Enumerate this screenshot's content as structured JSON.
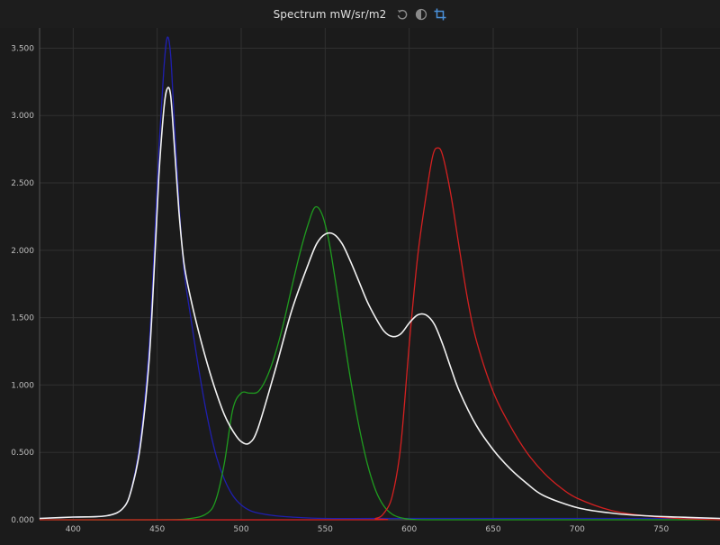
{
  "header": {
    "title": "Spectrum mW/sr/m2",
    "icons": [
      "reset-icon",
      "contrast-icon",
      "crop-icon"
    ],
    "accent": "#4a90d9"
  },
  "chart_data": {
    "type": "line",
    "title": "Spectrum mW/sr/m2",
    "xlabel": "",
    "ylabel": "",
    "xlim": [
      380,
      785
    ],
    "ylim": [
      0,
      3.65
    ],
    "x_ticks": [
      400,
      450,
      500,
      550,
      600,
      650,
      700,
      750
    ],
    "y_ticks": [
      0,
      0.5,
      1.0,
      1.5,
      2.0,
      2.5,
      3.0,
      3.5
    ],
    "y_tick_labels": [
      "0.000",
      "0.500",
      "1.000",
      "1.500",
      "2.000",
      "2.500",
      "3.000",
      "3.500"
    ],
    "grid": true,
    "series": [
      {
        "color": "#1f1fae",
        "x": [
          380,
          400,
          420,
          430,
          435,
          440,
          445,
          448,
          451,
          454,
          456,
          458,
          460,
          463,
          466,
          470,
          475,
          480,
          485,
          490,
          495,
          500,
          505,
          510,
          520,
          530,
          550,
          600,
          650,
          700,
          750,
          785
        ],
        "y": [
          0.01,
          0.02,
          0.03,
          0.09,
          0.25,
          0.6,
          1.25,
          1.95,
          2.75,
          3.35,
          3.58,
          3.45,
          3.0,
          2.35,
          1.85,
          1.5,
          1.1,
          0.75,
          0.48,
          0.3,
          0.18,
          0.11,
          0.07,
          0.05,
          0.03,
          0.02,
          0.01,
          0.01,
          0.01,
          0.01,
          0.01,
          0.01
        ]
      },
      {
        "color": "#1f9c1f",
        "x": [
          380,
          450,
          470,
          480,
          485,
          490,
          495,
          500,
          505,
          510,
          515,
          520,
          525,
          530,
          535,
          540,
          544,
          548,
          552,
          556,
          560,
          565,
          570,
          575,
          580,
          585,
          590,
          595,
          600,
          610,
          650,
          785
        ],
        "y": [
          0.0,
          0.0,
          0.01,
          0.05,
          0.15,
          0.42,
          0.82,
          0.94,
          0.94,
          0.95,
          1.05,
          1.22,
          1.45,
          1.72,
          1.98,
          2.2,
          2.32,
          2.27,
          2.08,
          1.78,
          1.45,
          1.05,
          0.7,
          0.42,
          0.22,
          0.1,
          0.04,
          0.015,
          0.005,
          0.0,
          0.0,
          0.0
        ]
      },
      {
        "color": "#d42020",
        "x": [
          380,
          570,
          580,
          585,
          590,
          595,
          600,
          605,
          610,
          614,
          617,
          620,
          625,
          630,
          635,
          640,
          650,
          660,
          670,
          680,
          690,
          700,
          720,
          740,
          760,
          785
        ],
        "y": [
          0.0,
          0.0,
          0.01,
          0.05,
          0.18,
          0.55,
          1.3,
          1.95,
          2.4,
          2.7,
          2.76,
          2.7,
          2.4,
          2.0,
          1.62,
          1.33,
          0.95,
          0.7,
          0.5,
          0.35,
          0.24,
          0.16,
          0.07,
          0.03,
          0.01,
          0.0
        ]
      },
      {
        "color": "#f2f2f2",
        "x": [
          380,
          400,
          420,
          430,
          435,
          440,
          445,
          448,
          451,
          454,
          456,
          458,
          460,
          463,
          466,
          470,
          475,
          480,
          485,
          490,
          495,
          500,
          505,
          510,
          520,
          530,
          540,
          545,
          550,
          555,
          560,
          565,
          570,
          575,
          580,
          585,
          590,
          595,
          600,
          605,
          610,
          615,
          620,
          625,
          630,
          640,
          650,
          660,
          670,
          680,
          700,
          720,
          740,
          760,
          785
        ],
        "y": [
          0.01,
          0.02,
          0.03,
          0.09,
          0.24,
          0.55,
          1.15,
          1.8,
          2.55,
          3.05,
          3.2,
          3.15,
          2.82,
          2.28,
          1.9,
          1.64,
          1.38,
          1.15,
          0.95,
          0.78,
          0.66,
          0.58,
          0.57,
          0.68,
          1.1,
          1.55,
          1.9,
          2.05,
          2.12,
          2.12,
          2.05,
          1.92,
          1.77,
          1.62,
          1.5,
          1.4,
          1.36,
          1.38,
          1.46,
          1.52,
          1.52,
          1.45,
          1.3,
          1.12,
          0.95,
          0.7,
          0.52,
          0.38,
          0.27,
          0.18,
          0.09,
          0.05,
          0.03,
          0.02,
          0.01
        ]
      }
    ]
  }
}
